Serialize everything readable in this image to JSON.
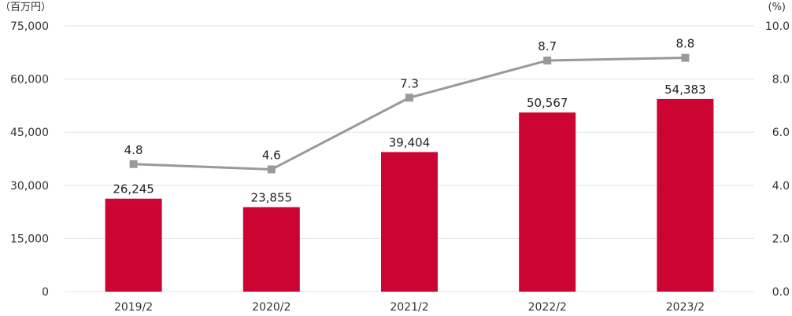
{
  "chart_data": {
    "type": "bar",
    "title": "",
    "categories": [
      "2019/2",
      "2020/2",
      "2021/2",
      "2022/2",
      "2023/2"
    ],
    "series": [
      {
        "name": "bar",
        "type": "bar",
        "axis": "left",
        "values": [
          26245,
          23855,
          39404,
          50567,
          54383
        ],
        "labels": [
          "26,245",
          "23,855",
          "39,404",
          "50,567",
          "54,383"
        ],
        "color": "#cc0433"
      },
      {
        "name": "line",
        "type": "line",
        "axis": "right",
        "values": [
          4.8,
          4.6,
          7.3,
          8.7,
          8.8
        ],
        "labels": [
          "4.8",
          "4.6",
          "7.3",
          "8.7",
          "8.8"
        ],
        "color": "#999999"
      }
    ],
    "ylabel": "（百万円）",
    "y2label": "(%)",
    "ylim": [
      0,
      75000
    ],
    "y2lim": [
      0,
      10
    ],
    "yticks": [
      0,
      15000,
      30000,
      45000,
      60000,
      75000
    ],
    "yticklabels": [
      "0",
      "15,000",
      "30,000",
      "45,000",
      "60,000",
      "75,000"
    ],
    "y2ticks": [
      0,
      2,
      4,
      6,
      8,
      10
    ],
    "y2ticklabels": [
      "0.0",
      "2.0",
      "4.0",
      "6.0",
      "8.0",
      "10.0"
    ],
    "grid": true,
    "gridColor": "#e3e3e3"
  }
}
